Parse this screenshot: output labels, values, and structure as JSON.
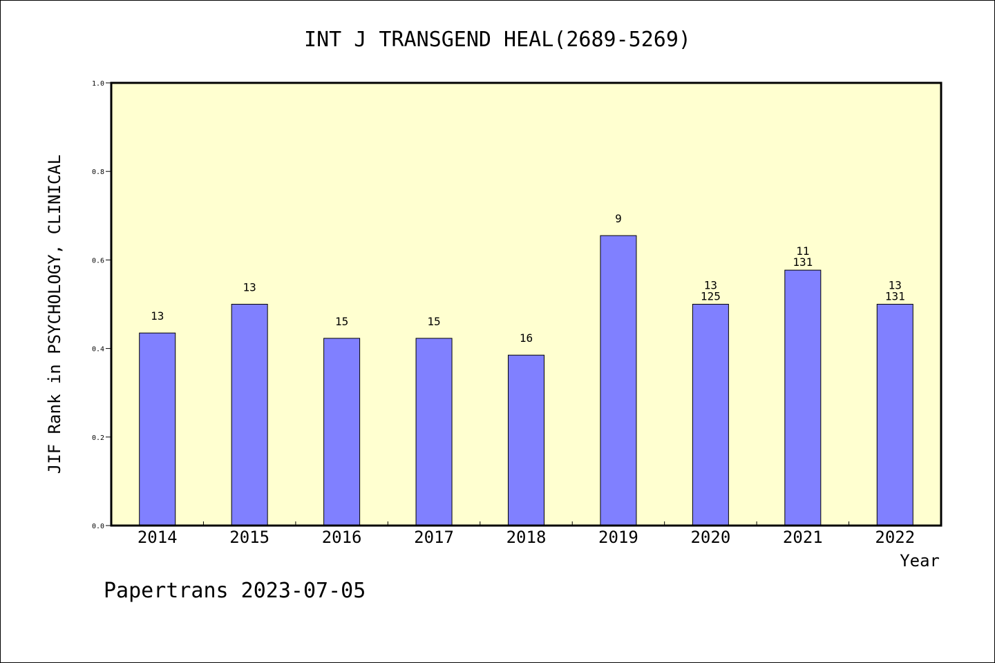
{
  "chart_data": {
    "type": "bar",
    "title": "INT J TRANSGEND HEAL(2689-5269)",
    "xlabel": "Year",
    "ylabel": "JIF Rank in PSYCHOLOGY, CLINICAL",
    "ylim": [
      0,
      1
    ],
    "yticks": [
      "0.0",
      "0.2",
      "0.4",
      "0.6",
      "0.8",
      "1.0"
    ],
    "categories": [
      "2014",
      "2015",
      "2016",
      "2017",
      "2018",
      "2019",
      "2020",
      "2021",
      "2022"
    ],
    "values": [
      0.435,
      0.5,
      0.423,
      0.423,
      0.385,
      0.655,
      0.5,
      0.577,
      0.5
    ],
    "labels_top": [
      "13",
      "13",
      "15",
      "15",
      "16",
      "9",
      "13",
      "11",
      "13"
    ],
    "labels_bottom": [
      "",
      "",
      "",
      "",
      "",
      "",
      "125",
      "131",
      "131"
    ],
    "plot_bg": "#ffffd0",
    "bar_color": "#8080ff",
    "grid": false
  },
  "footer": "Papertrans 2023-07-05"
}
